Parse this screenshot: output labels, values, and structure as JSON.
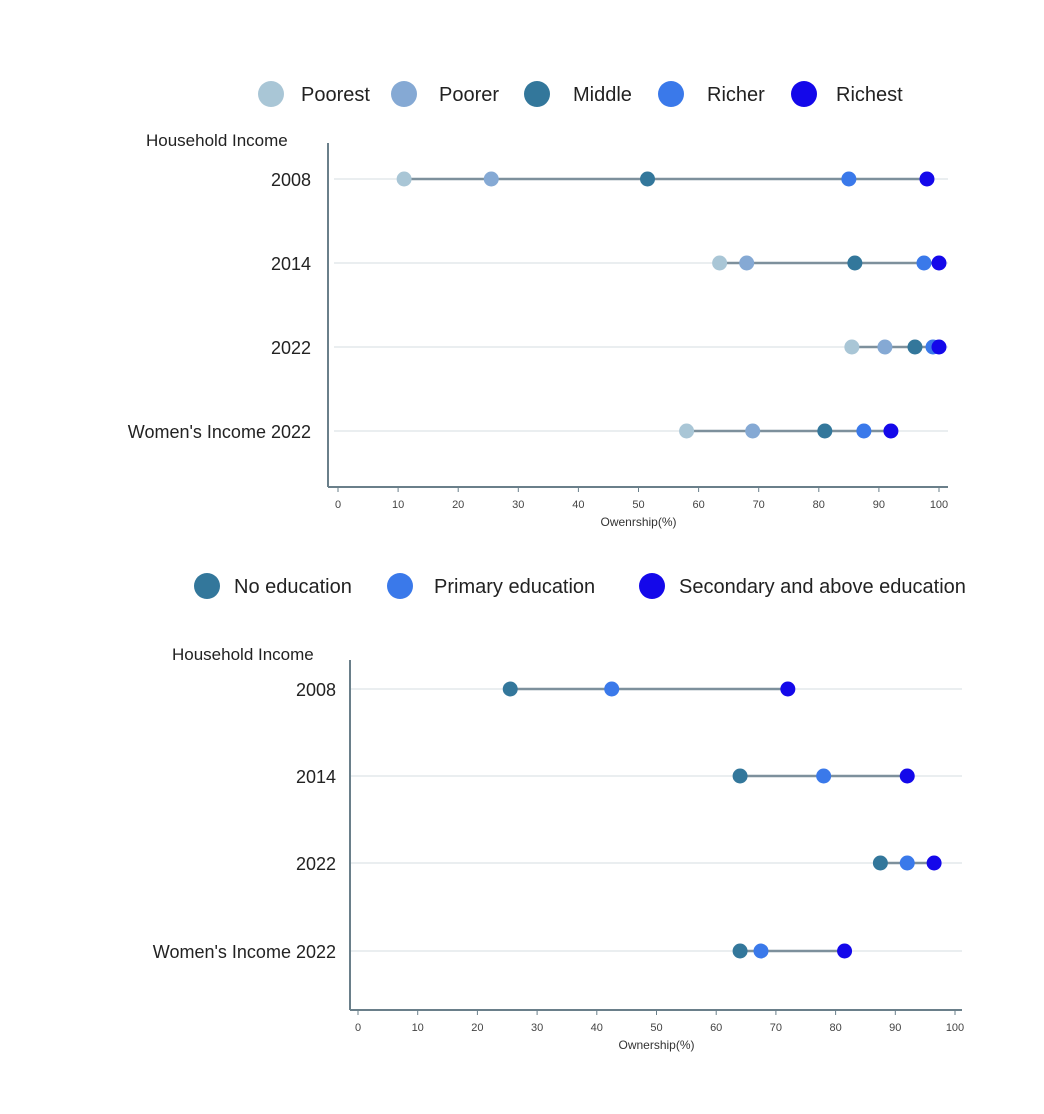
{
  "chart_data": [
    {
      "type": "scatter",
      "subtype": "dot-range",
      "y_caption": "Household Income",
      "xlabel": "Owenrship(%)",
      "xlim": [
        0,
        100
      ],
      "xticks": [
        0,
        10,
        20,
        30,
        40,
        50,
        60,
        70,
        80,
        90,
        100
      ],
      "categories": [
        "2008",
        "2014",
        "2022",
        "Women's Income 2022"
      ],
      "legend_position": "top",
      "grid": "horizontal",
      "series": [
        {
          "name": "Poorest",
          "color": "#a9c6d6",
          "values": [
            11,
            63.5,
            85.5,
            58
          ]
        },
        {
          "name": "Poorer",
          "color": "#85a9d4",
          "values": [
            25.5,
            68,
            91,
            69
          ]
        },
        {
          "name": "Middle",
          "color": "#33779b",
          "values": [
            51.5,
            86,
            96,
            81
          ]
        },
        {
          "name": "Richer",
          "color": "#3a79ea",
          "values": [
            85,
            97.5,
            99,
            87.5
          ]
        },
        {
          "name": "Richest",
          "color": "#1408ea",
          "values": [
            98,
            100,
            100,
            92
          ]
        }
      ]
    },
    {
      "type": "scatter",
      "subtype": "dot-range",
      "y_caption": "Household Income",
      "xlabel": "Ownership(%)",
      "xlim": [
        0,
        100
      ],
      "xticks": [
        0,
        10,
        20,
        30,
        40,
        50,
        60,
        70,
        80,
        90,
        100
      ],
      "categories": [
        "2008",
        "2014",
        "2022",
        "Women's Income 2022"
      ],
      "legend_position": "top",
      "grid": "horizontal",
      "series": [
        {
          "name": "No education",
          "color": "#33779b",
          "values": [
            25.5,
            64,
            87.5,
            64
          ]
        },
        {
          "name": "Primary education",
          "color": "#3a79ea",
          "values": [
            42.5,
            78,
            92,
            67.5
          ]
        },
        {
          "name": "Secondary and above education",
          "color": "#1408ea",
          "values": [
            72,
            92,
            96.5,
            81.5
          ]
        }
      ]
    }
  ]
}
